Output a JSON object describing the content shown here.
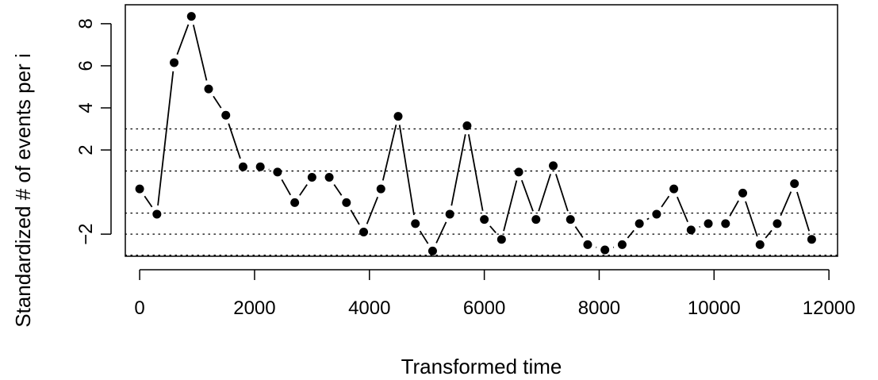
{
  "chart_data": {
    "type": "line",
    "xlabel": "Transformed time",
    "ylabel": "Standardized # of events per i",
    "xlim": [
      -250,
      12150
    ],
    "ylim": [
      -3.05,
      8.9
    ],
    "x_ticks": [
      0,
      2000,
      4000,
      6000,
      8000,
      10000,
      12000
    ],
    "x_tick_labels": [
      "0",
      "2000",
      "4000",
      "6000",
      "8000",
      "10000",
      "12000"
    ],
    "y_ticks": [
      -2,
      2,
      4,
      6,
      8
    ],
    "y_tick_labels": [
      "−2",
      "2",
      "4",
      "6",
      "8"
    ],
    "reference_lines": [
      -3,
      -2,
      -1,
      1,
      2,
      3
    ],
    "reference_line_style": "dotted",
    "line_style": "broken segments (type b)",
    "grid": false,
    "series": [
      {
        "x": [
          0,
          300,
          600,
          900,
          1200,
          1500,
          1800,
          2100,
          2400,
          2700,
          3000,
          3300,
          3600,
          3900,
          4200,
          4500,
          4800,
          5100,
          5400,
          5700,
          6000,
          6300,
          6600,
          6900,
          7200,
          7500,
          7800,
          8100,
          8400,
          8700,
          9000,
          9300,
          9600,
          9900,
          10200,
          10500,
          10800,
          11100,
          11400,
          11700
        ],
        "y": [
          0.15,
          -1.05,
          6.15,
          8.35,
          4.9,
          3.65,
          1.2,
          1.2,
          0.95,
          -0.5,
          0.7,
          0.7,
          -0.5,
          -1.9,
          0.15,
          3.6,
          -1.5,
          -2.8,
          -1.05,
          3.15,
          -1.3,
          -2.25,
          0.95,
          -1.3,
          1.25,
          -1.3,
          -2.5,
          -2.75,
          -2.5,
          -1.5,
          -1.05,
          0.15,
          -1.8,
          -1.5,
          -1.5,
          -0.05,
          -2.5,
          -1.5,
          0.4,
          -2.25
        ]
      }
    ]
  }
}
